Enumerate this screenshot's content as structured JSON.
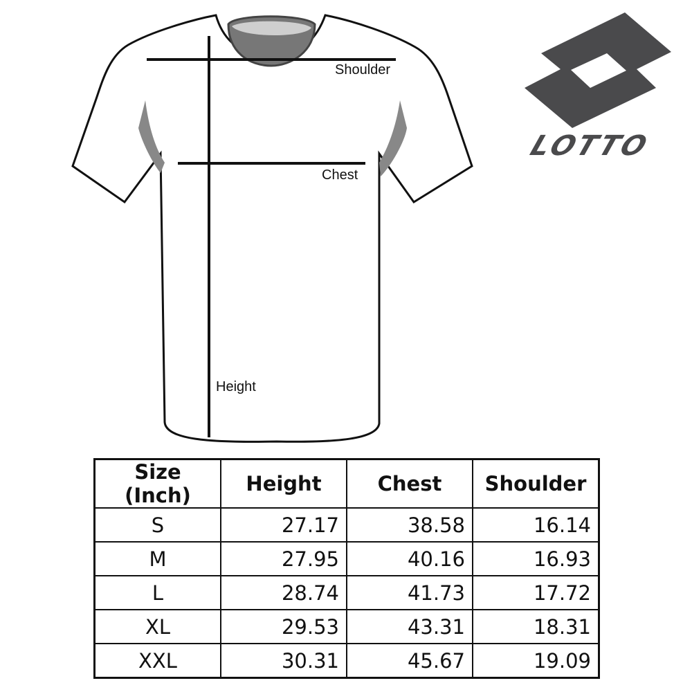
{
  "diagram": {
    "labels": {
      "shoulder": "Shoulder",
      "chest": "Chest",
      "height": "Height"
    }
  },
  "logo": {
    "brand": "LOTTO",
    "color": "#4a4a4c"
  },
  "size_table": {
    "headers": [
      "Size (Inch)",
      "Height",
      "Chest",
      "Shoulder"
    ],
    "rows": [
      [
        "S",
        "27.17",
        "38.58",
        "16.14"
      ],
      [
        "M",
        "27.95",
        "40.16",
        "16.93"
      ],
      [
        "L",
        "28.74",
        "41.73",
        "17.72"
      ],
      [
        "XL",
        "29.53",
        "43.31",
        "18.31"
      ],
      [
        "XXL",
        "30.31",
        "45.67",
        "19.09"
      ]
    ]
  }
}
